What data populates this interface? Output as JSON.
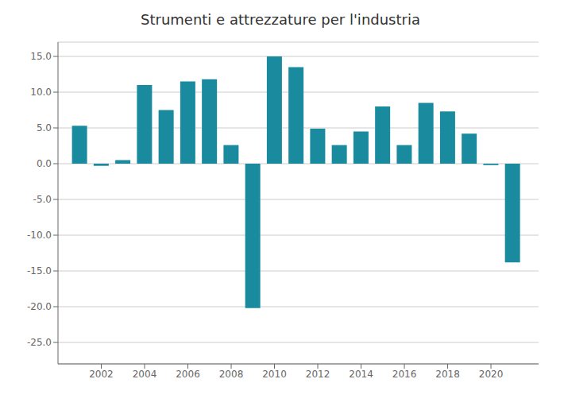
{
  "chart_data": {
    "type": "bar",
    "title": "Strumenti e attrezzature per l'industria",
    "x": [
      2001,
      2002,
      2003,
      2004,
      2005,
      2006,
      2007,
      2008,
      2009,
      2010,
      2011,
      2012,
      2013,
      2014,
      2015,
      2016,
      2017,
      2018,
      2019,
      2020,
      2021
    ],
    "values": [
      5.3,
      -0.3,
      0.5,
      11.0,
      7.5,
      11.5,
      11.8,
      2.6,
      -20.2,
      15.0,
      13.5,
      4.9,
      2.6,
      4.5,
      8.0,
      2.6,
      8.5,
      7.3,
      4.2,
      -0.2,
      -13.8
    ],
    "color": "#1a8a9e",
    "xlim": [
      2000,
      2022.2
    ],
    "xticks": [
      2002,
      2004,
      2006,
      2008,
      2010,
      2012,
      2014,
      2016,
      2018,
      2020
    ],
    "ylim": [
      -28,
      17
    ],
    "yticks": [
      {
        "value": -25,
        "label": "-25.0"
      },
      {
        "value": -20,
        "label": "-20.0"
      },
      {
        "value": -15,
        "label": "-15.0"
      },
      {
        "value": -10,
        "label": "-10.0"
      },
      {
        "value": -5,
        "label": "-5.0"
      },
      {
        "value": 0,
        "label": "0.0"
      },
      {
        "value": 5,
        "label": "5.0"
      },
      {
        "value": 10,
        "label": "10.0"
      },
      {
        "value": 15,
        "label": "15.0"
      }
    ],
    "grid": true
  }
}
